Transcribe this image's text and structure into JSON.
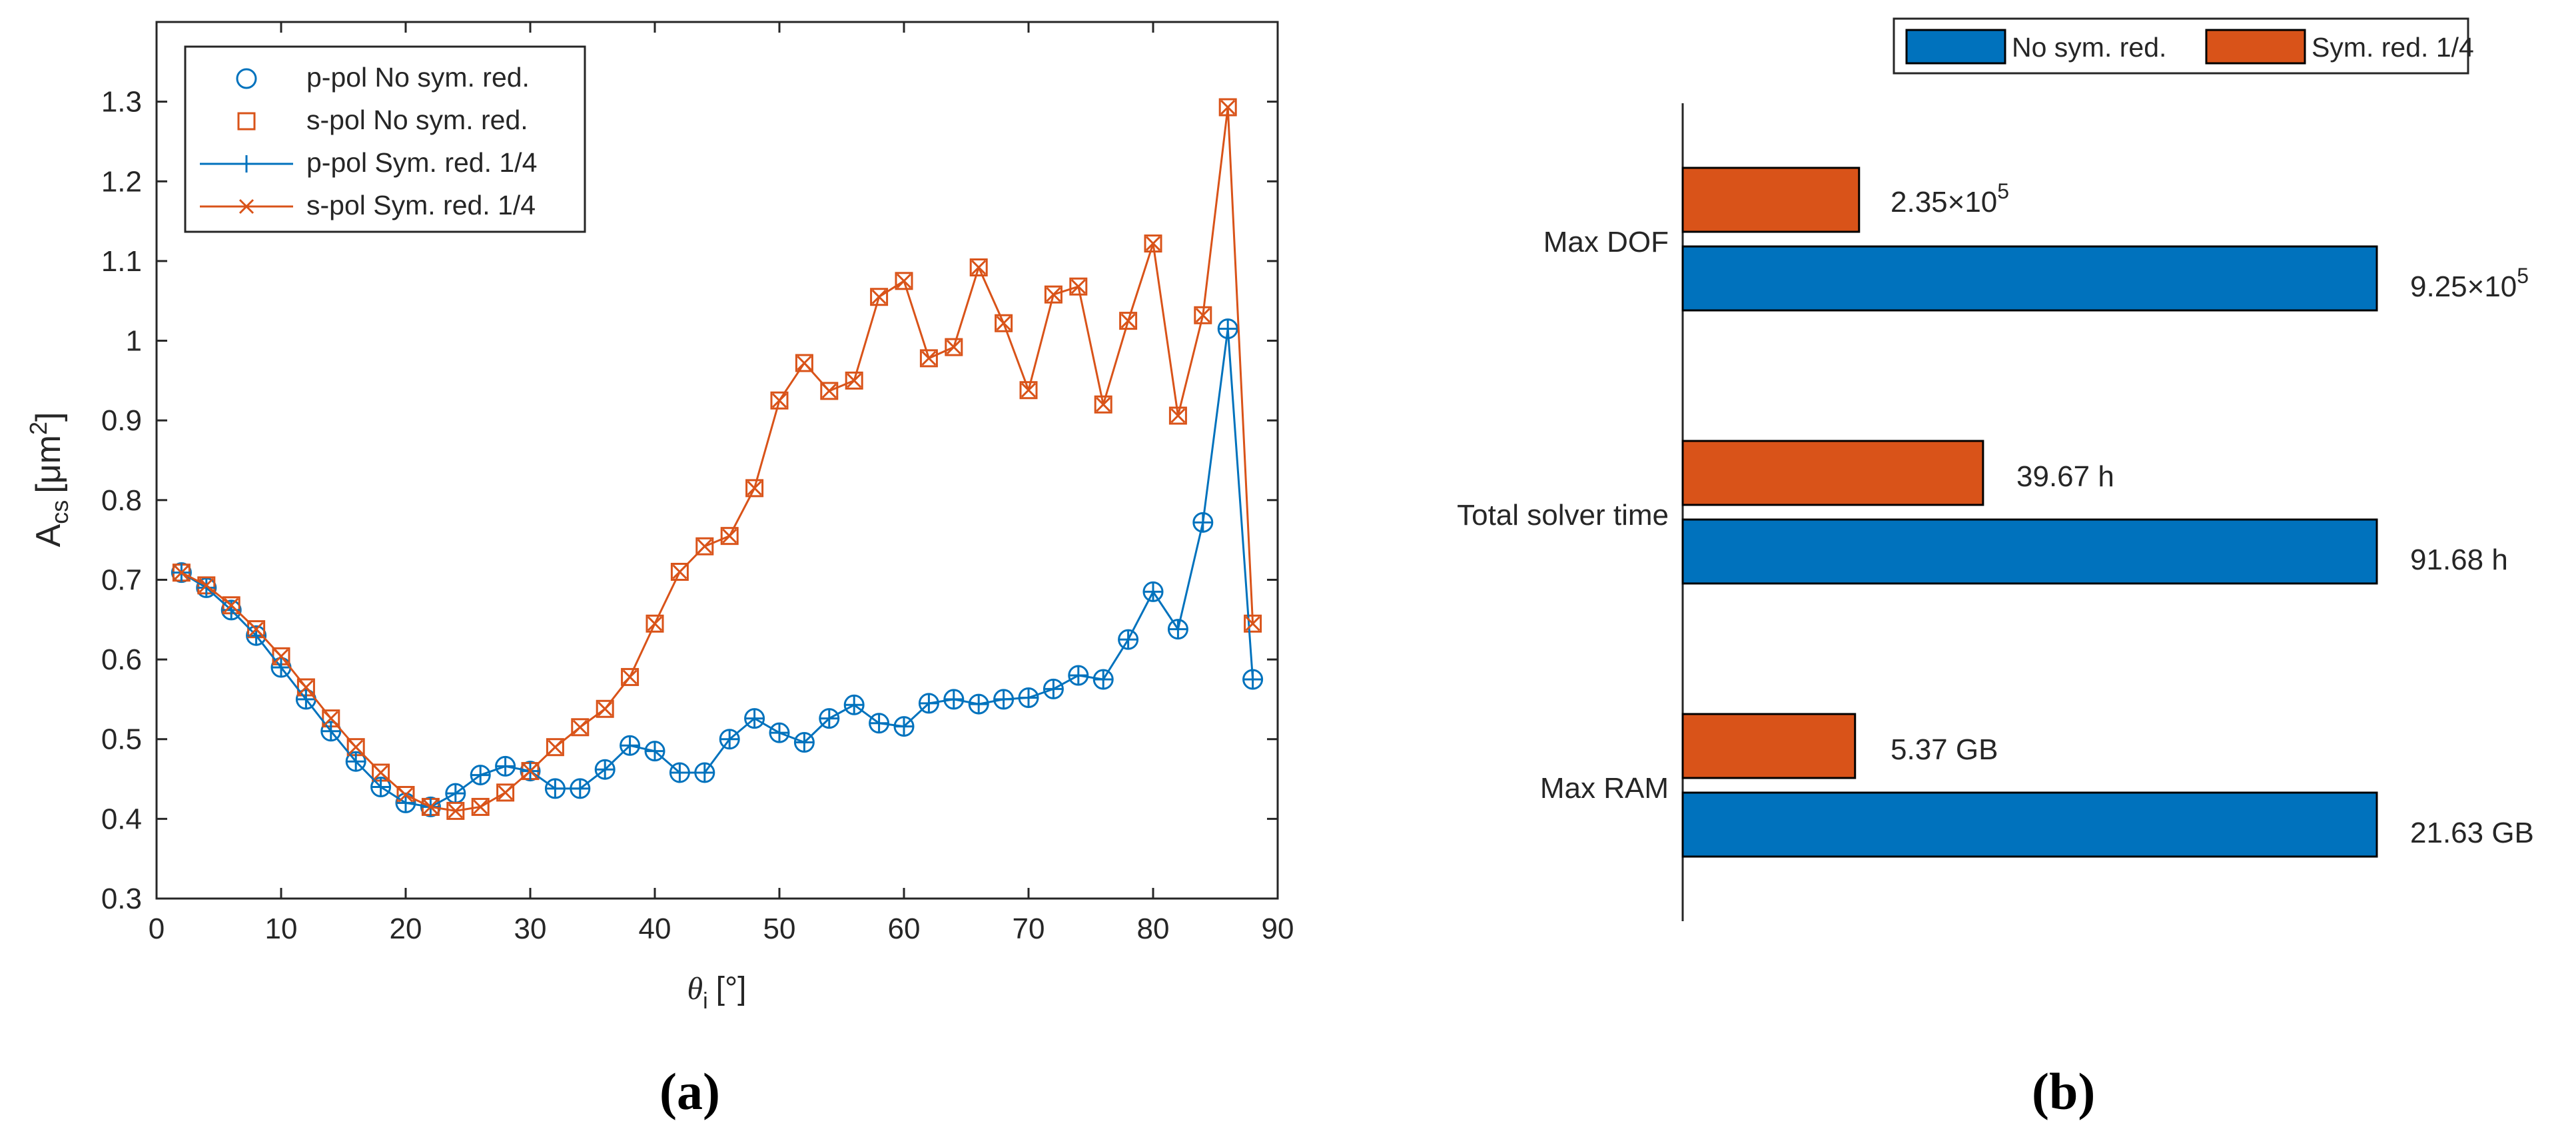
{
  "colors": {
    "blue": "#0072BD",
    "orange": "#D95319"
  },
  "chart_data": [
    {
      "panel": "(a)",
      "type": "line",
      "title": "",
      "xlabel": "θ",
      "xlabel_sub": "i",
      "xlabel_unit": "[°]",
      "ylabel": "A",
      "ylabel_sub": "cs",
      "ylabel_unit": "[μm",
      "ylabel_sup": "2",
      "ylabel_close": "]",
      "xlim": [
        0,
        90
      ],
      "ylim": [
        0.3,
        1.4
      ],
      "xticks": [
        "0",
        "10",
        "20",
        "30",
        "40",
        "50",
        "60",
        "70",
        "80",
        "90"
      ],
      "yticks": [
        "0.3",
        "0.4",
        "0.5",
        "0.6",
        "0.7",
        "0.8",
        "0.9",
        "1",
        "1.1",
        "1.2",
        "1.3"
      ],
      "grid": false,
      "legend": "top-left",
      "x": [
        2,
        4,
        6,
        8,
        10,
        12,
        14,
        16,
        18,
        20,
        22,
        24,
        26,
        28,
        30,
        32,
        34,
        36,
        38,
        40,
        42,
        44,
        46,
        48,
        50,
        52,
        54,
        56,
        58,
        60,
        62,
        64,
        66,
        68,
        70,
        72,
        74,
        76,
        78,
        80,
        82,
        84,
        86,
        88
      ],
      "series": [
        {
          "name": "p-pol No sym. red.",
          "color": "blue",
          "marker": "circle",
          "line": false,
          "values": [
            0.709,
            0.69,
            0.662,
            0.63,
            0.59,
            0.55,
            0.51,
            0.472,
            0.44,
            0.42,
            0.415,
            0.432,
            0.455,
            0.466,
            0.46,
            0.438,
            0.438,
            0.462,
            0.492,
            0.485,
            0.458,
            0.458,
            0.5,
            0.526,
            0.508,
            0.496,
            0.526,
            0.543,
            0.52,
            0.516,
            0.545,
            0.55,
            0.544,
            0.55,
            0.552,
            0.563,
            0.58,
            0.575,
            0.625,
            0.685,
            0.638,
            0.772,
            1.015,
            0.575
          ]
        },
        {
          "name": "s-pol No sym. red.",
          "color": "orange",
          "marker": "square",
          "line": false,
          "values": [
            0.709,
            0.693,
            0.668,
            0.638,
            0.604,
            0.565,
            0.526,
            0.49,
            0.458,
            0.43,
            0.415,
            0.41,
            0.415,
            0.433,
            0.46,
            0.49,
            0.515,
            0.538,
            0.578,
            0.645,
            0.71,
            0.742,
            0.755,
            0.815,
            0.925,
            0.972,
            0.937,
            0.95,
            1.055,
            1.075,
            0.978,
            0.992,
            1.092,
            1.022,
            0.938,
            1.058,
            1.068,
            0.92,
            1.025,
            1.122,
            0.906,
            1.032,
            1.293,
            0.645
          ]
        },
        {
          "name": "p-pol Sym. red. 1/4",
          "color": "blue",
          "marker": "plus",
          "line": true,
          "values": [
            0.709,
            0.69,
            0.662,
            0.63,
            0.59,
            0.55,
            0.51,
            0.472,
            0.44,
            0.42,
            0.415,
            0.432,
            0.455,
            0.466,
            0.46,
            0.438,
            0.438,
            0.462,
            0.492,
            0.485,
            0.458,
            0.458,
            0.5,
            0.526,
            0.508,
            0.496,
            0.526,
            0.543,
            0.52,
            0.516,
            0.545,
            0.55,
            0.544,
            0.55,
            0.552,
            0.563,
            0.58,
            0.575,
            0.625,
            0.685,
            0.638,
            0.772,
            1.015,
            0.575
          ]
        },
        {
          "name": "s-pol Sym. red. 1/4",
          "color": "orange",
          "marker": "x",
          "line": true,
          "values": [
            0.709,
            0.693,
            0.668,
            0.638,
            0.604,
            0.565,
            0.526,
            0.49,
            0.458,
            0.43,
            0.415,
            0.41,
            0.415,
            0.433,
            0.46,
            0.49,
            0.515,
            0.538,
            0.578,
            0.645,
            0.71,
            0.742,
            0.755,
            0.815,
            0.925,
            0.972,
            0.937,
            0.95,
            1.055,
            1.075,
            0.978,
            0.992,
            1.092,
            1.022,
            0.938,
            1.058,
            1.068,
            0.92,
            1.025,
            1.122,
            0.906,
            1.032,
            1.293,
            0.645
          ]
        }
      ]
    },
    {
      "panel": "(b)",
      "type": "bar",
      "orientation": "horizontal",
      "title": "",
      "xlabel": "",
      "ylabel": "",
      "categories": [
        "Max DOF",
        "Total solver time",
        "Max RAM"
      ],
      "legend": "top, outside",
      "series": [
        {
          "name": "No sym. red.",
          "color": "blue",
          "values": [
            1.0,
            1.0,
            1.0
          ],
          "labels": [
            {
              "mantissa": "9.25",
              "times": "×10",
              "exp": "5"
            },
            {
              "text": "91.68 h"
            },
            {
              "text": "21.63 GB"
            }
          ]
        },
        {
          "name": "Sym. red. 1/4",
          "color": "orange",
          "values": [
            0.2541,
            0.4327,
            0.2483
          ],
          "labels": [
            {
              "mantissa": "2.35",
              "times": "×10",
              "exp": "5"
            },
            {
              "text": "39.67 h"
            },
            {
              "text": "5.37 GB"
            }
          ]
        }
      ],
      "absolute_values": {
        "No sym. red.": [
          925000,
          91.68,
          21.63
        ],
        "Sym. red. 1/4": [
          235000,
          39.67,
          5.37
        ]
      },
      "value_scale": "relative to No sym. red. for each category"
    }
  ]
}
